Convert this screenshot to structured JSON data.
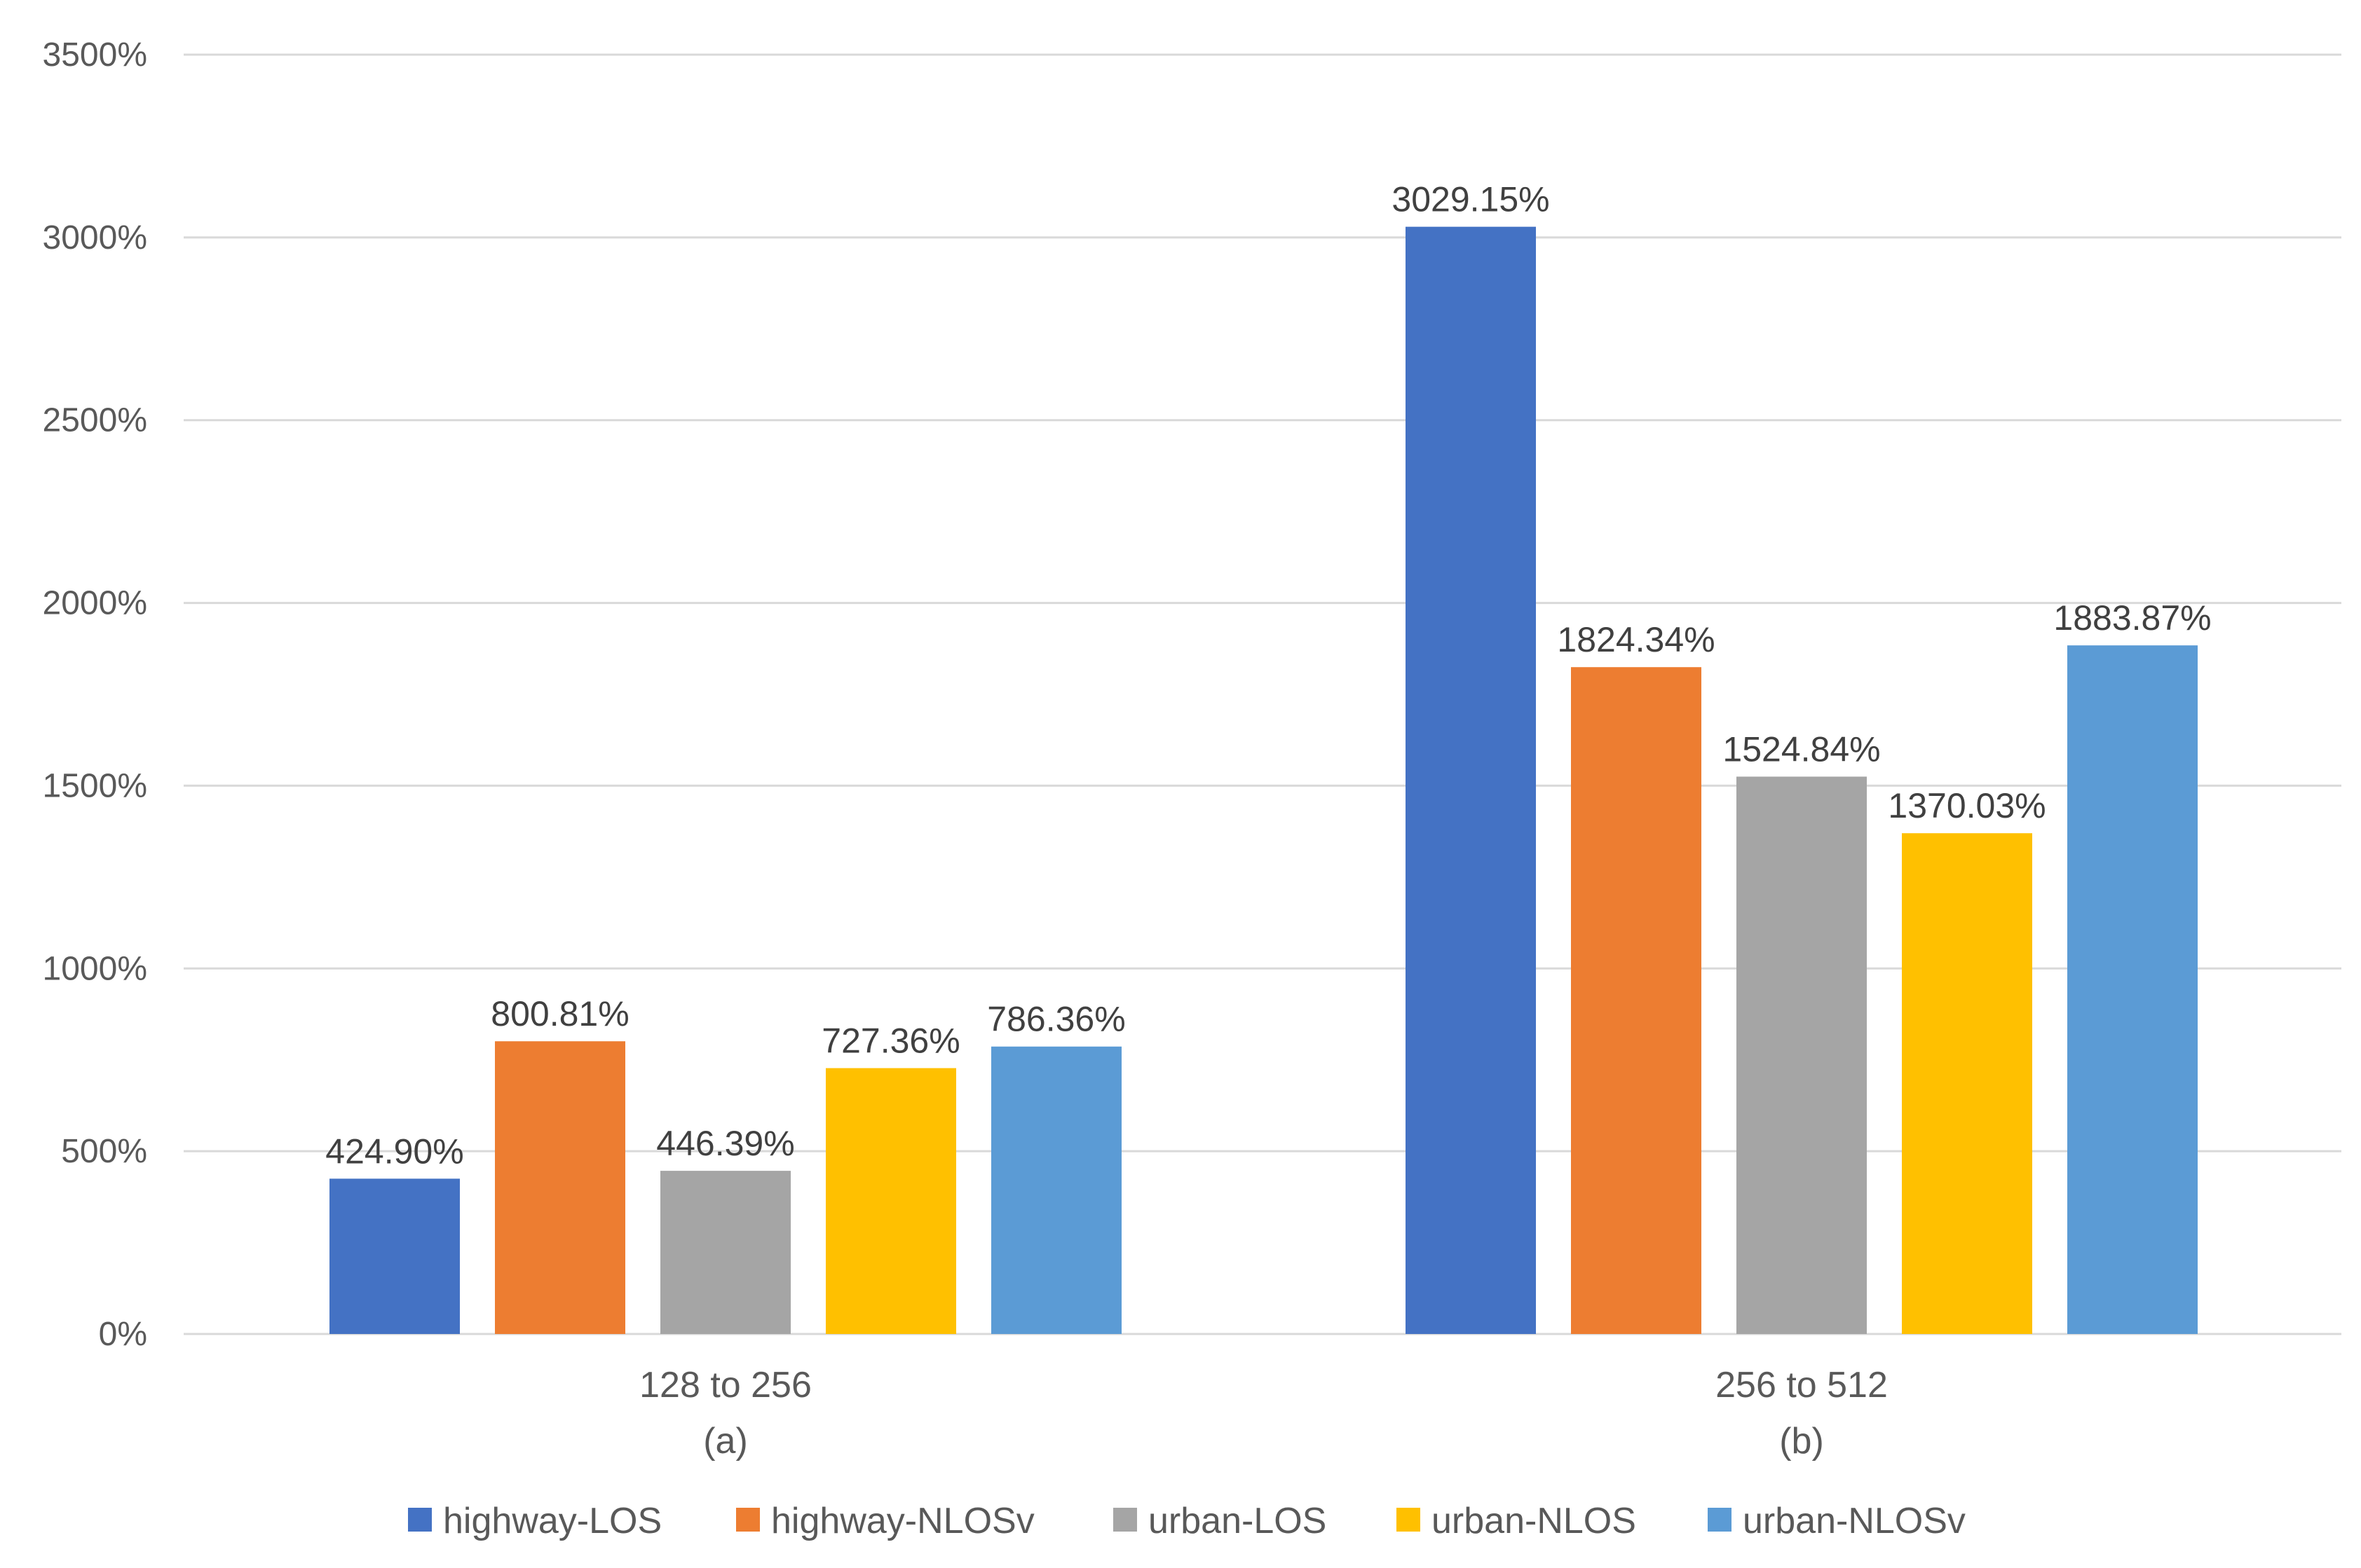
{
  "chart_data": {
    "type": "bar",
    "title": "",
    "xlabel": "",
    "ylabel": "",
    "ylim": [
      0,
      3500
    ],
    "y_ticks": [
      0,
      500,
      1000,
      1500,
      2000,
      2500,
      3000,
      3500
    ],
    "y_tick_labels": [
      "0%",
      "500%",
      "1000%",
      "1500%",
      "2000%",
      "2500%",
      "3000%",
      "3500%"
    ],
    "grid": true,
    "categories": [
      {
        "line1": "128 to 256",
        "line2": "(a)"
      },
      {
        "line1": "256 to 512",
        "line2": "(b)"
      }
    ],
    "series": [
      {
        "name": "highway-LOS",
        "color": "#4472C4",
        "values": [
          424.9,
          3029.15
        ],
        "labels": [
          "424.90%",
          "3029.15%"
        ]
      },
      {
        "name": "highway-NLOSv",
        "color": "#ED7D31",
        "values": [
          800.81,
          1824.34
        ],
        "labels": [
          "800.81%",
          "1824.34%"
        ]
      },
      {
        "name": "urban-LOS",
        "color": "#A5A5A5",
        "values": [
          446.39,
          1524.84
        ],
        "labels": [
          "446.39%",
          "1524.84%"
        ]
      },
      {
        "name": "urban-NLOS",
        "color": "#FFC000",
        "values": [
          727.36,
          1370.03
        ],
        "labels": [
          "727.36%",
          "1370.03%"
        ]
      },
      {
        "name": "urban-NLOSv",
        "color": "#5B9BD5",
        "values": [
          786.36,
          1883.87
        ],
        "labels": [
          "786.36%",
          "1883.87%"
        ]
      }
    ],
    "legend_position": "bottom"
  }
}
